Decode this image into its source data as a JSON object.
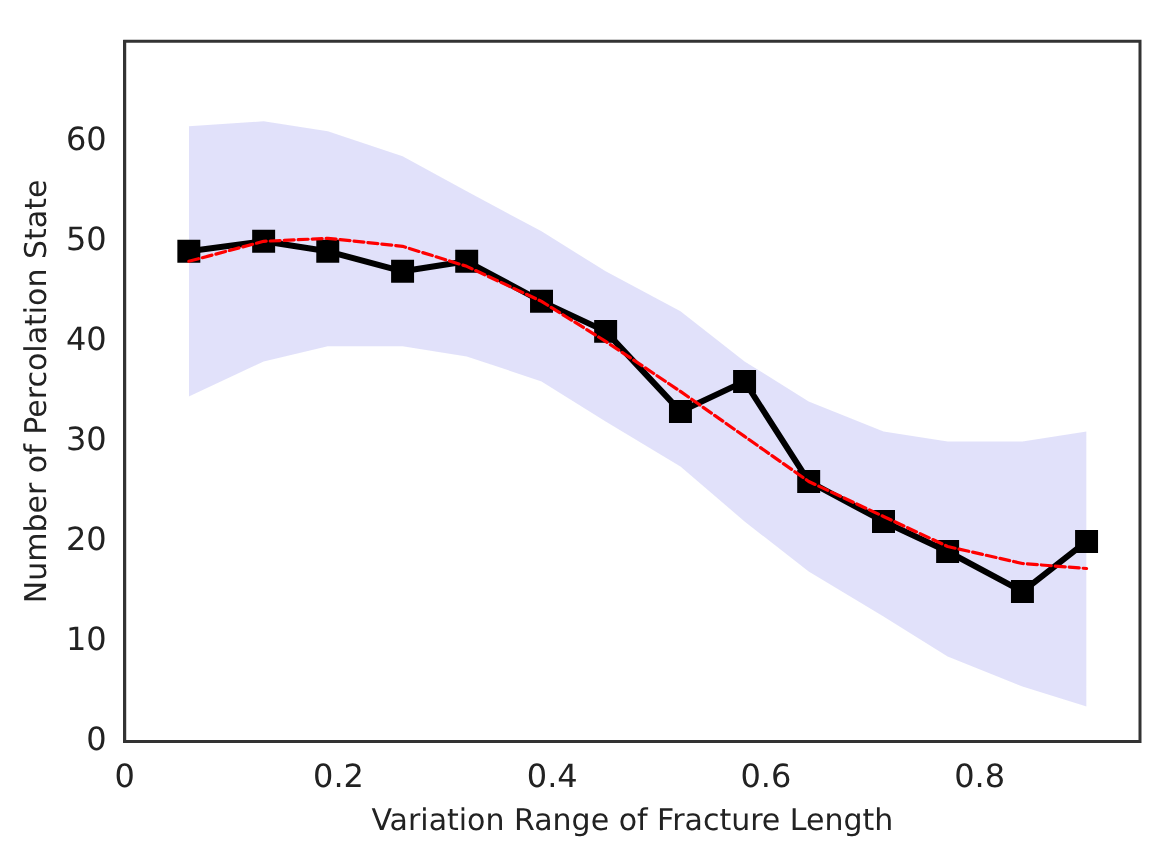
{
  "chart_data": {
    "type": "line",
    "xlabel": "Variation Range of Fracture Length",
    "ylabel": "Number of Percolation State",
    "xlim": [
      0,
      0.95
    ],
    "xticks": [
      0,
      0.2,
      0.4,
      0.6,
      0.8
    ],
    "ylim": [
      0,
      70
    ],
    "yticks": [
      0,
      10,
      20,
      30,
      40,
      50,
      60
    ],
    "grid": false,
    "legend": false,
    "x": [
      0.06,
      0.13,
      0.19,
      0.26,
      0.32,
      0.39,
      0.45,
      0.52,
      0.58,
      0.64,
      0.71,
      0.77,
      0.84,
      0.9
    ],
    "series": [
      {
        "color": "#000000",
        "marker": "square",
        "line_style": "solid",
        "values": [
          49,
          50,
          49,
          47,
          48,
          44,
          41,
          33,
          36,
          26,
          22,
          19,
          15,
          20
        ],
        "lower": [
          34.5,
          38,
          39.5,
          39.5,
          38.5,
          36,
          32,
          27.5,
          22,
          17,
          12.5,
          8.5,
          5.5,
          3.5
        ],
        "upper": [
          61.5,
          62,
          61,
          58.5,
          55,
          51,
          47,
          43,
          38,
          34,
          31,
          30,
          30,
          31
        ]
      },
      {
        "color": "#ff0000",
        "marker": "none",
        "line_style": "dashed",
        "values": [
          48,
          50,
          50.3,
          49.5,
          47.5,
          44,
          40,
          35,
          30.5,
          26,
          22.5,
          19.5,
          17.8,
          17.3
        ]
      }
    ]
  }
}
